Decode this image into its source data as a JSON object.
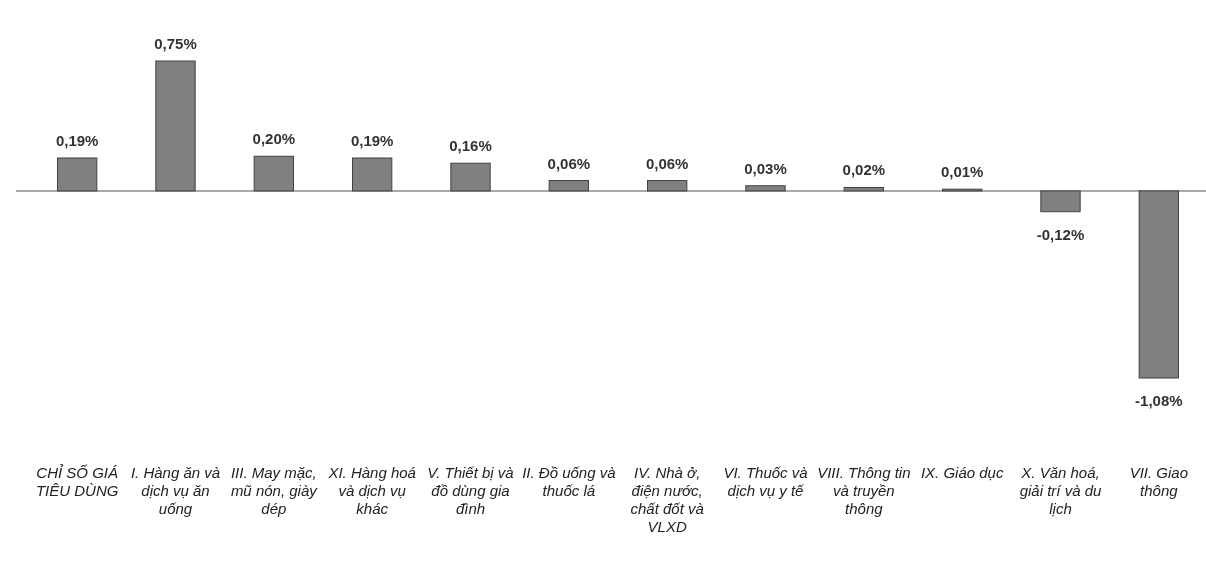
{
  "chart_data": {
    "type": "bar",
    "categories": [
      "CHỈ SỐ GIÁ TIÊU DÙNG",
      "I. Hàng ăn và dịch vụ ăn uống",
      "III. May mặc, mũ nón, giày dép",
      "XI. Hàng hoá và dịch vụ khác",
      "V. Thiết bị và đồ dùng gia đình",
      "II. Đồ uống và thuốc lá",
      "IV. Nhà ở, điện nước, chất đốt và VLXD",
      "VI. Thuốc và dịch vụ y tế",
      "VIII. Thông tin và truyền thông",
      "IX. Giáo dục",
      "X. Văn hoá, giải trí và du lịch",
      "VII. Giao thông"
    ],
    "values": [
      0.19,
      0.75,
      0.2,
      0.19,
      0.16,
      0.06,
      0.06,
      0.03,
      0.02,
      0.01,
      -0.12,
      -1.08
    ],
    "value_labels": [
      "0,19%",
      "0,75%",
      "0,20%",
      "0,19%",
      "0,16%",
      "0,06%",
      "0,06%",
      "0,03%",
      "0,02%",
      "0,01%",
      "-0,12%",
      "-1,08%"
    ],
    "color": "#808080"
  }
}
